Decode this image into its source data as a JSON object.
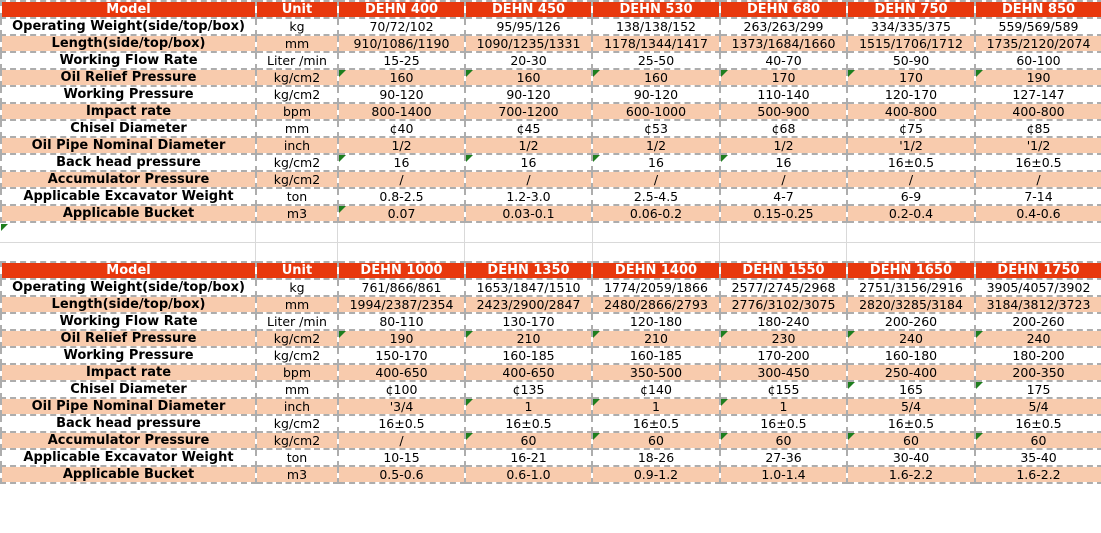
{
  "styles": {
    "header_bg": "#e8380d",
    "header_text": "#ffffff",
    "row_bg": "#ffffff",
    "row_alt_bg": "#f8cbad",
    "border_color": "#adadad",
    "gridline_color": "#d9d9d9",
    "indicator_color": "#1e7e1e",
    "text_color": "#000000"
  },
  "icons": {
    "error_indicator": "green-triangle-top-left"
  },
  "tables": [
    {
      "header": {
        "model_label": "Model",
        "unit_label": "Unit",
        "columns": [
          "DEHN 400",
          "DEHN 450",
          "DEHN 530",
          "DEHN 680",
          "DEHN 750",
          "DEHN 850"
        ]
      },
      "rows": [
        {
          "label": "Operating Weight(side/top/box)",
          "unit": "kg",
          "values": [
            "70/72/102",
            "95/95/126",
            "138/138/152",
            "263/263/299",
            "334/335/375",
            "559/569/589"
          ],
          "indicators": []
        },
        {
          "label": "Length(side/top/box)",
          "unit": "mm",
          "values": [
            "910/1086/1190",
            "1090/1235/1331",
            "1178/1344/1417",
            "1373/1684/1660",
            "1515/1706/1712",
            "1735/2120/2074"
          ],
          "indicators": []
        },
        {
          "label": "Working Flow Rate",
          "unit": "Liter /min",
          "values": [
            "15-25",
            "20-30",
            "25-50",
            "40-70",
            "50-90",
            "60-100"
          ],
          "indicators": []
        },
        {
          "label": "Oil Relief Pressure",
          "unit": "kg/cm2",
          "values": [
            "160",
            "160",
            "160",
            "170",
            "170",
            "190"
          ],
          "indicators": [
            0,
            1,
            2,
            3,
            4,
            5
          ]
        },
        {
          "label": "Working Pressure",
          "unit": "kg/cm2",
          "values": [
            "90-120",
            "90-120",
            "90-120",
            "110-140",
            "120-170",
            "127-147"
          ],
          "indicators": []
        },
        {
          "label": "Impact rate",
          "unit": "bpm",
          "values": [
            "800-1400",
            "700-1200",
            "600-1000",
            "500-900",
            "400-800",
            "400-800"
          ],
          "indicators": []
        },
        {
          "label": "Chisel Diameter",
          "unit": "mm",
          "values": [
            "¢40",
            "¢45",
            "¢53",
            "¢68",
            "¢75",
            "¢85"
          ],
          "indicators": []
        },
        {
          "label": "Oil Pipe Nominal Diameter",
          "unit": "inch",
          "values": [
            "1/2",
            "1/2",
            "1/2",
            "1/2",
            "'1/2",
            "'1/2"
          ],
          "indicators": []
        },
        {
          "label": "Back head pressure",
          "unit": "kg/cm2",
          "values": [
            "16",
            "16",
            "16",
            "16",
            "16±0.5",
            "16±0.5"
          ],
          "indicators": [
            0,
            1,
            2,
            3
          ]
        },
        {
          "label": "Accumulator Pressure",
          "unit": "kg/cm2",
          "values": [
            "/",
            "/",
            "/",
            "/",
            "/",
            "/"
          ],
          "indicators": []
        },
        {
          "label": "Applicable Excavator Weight",
          "unit": "ton",
          "values": [
            "0.8-2.5",
            "1.2-3.0",
            "2.5-4.5",
            "4-7",
            "6-9",
            "7-14"
          ],
          "indicators": []
        },
        {
          "label": "Applicable Bucket",
          "unit": "m3",
          "values": [
            "0.07",
            "0.03-0.1",
            "0.06-0.2",
            "0.15-0.25",
            "0.2-0.4",
            "0.4-0.6"
          ],
          "indicators": [
            0
          ]
        }
      ]
    },
    {
      "header": {
        "model_label": "Model",
        "unit_label": "Unit",
        "columns": [
          "DEHN 1000",
          "DEHN 1350",
          "DEHN 1400",
          "DEHN 1550",
          "DEHN 1650",
          "DEHN 1750"
        ]
      },
      "rows": [
        {
          "label": "Operating Weight(side/top/box)",
          "unit": "kg",
          "values": [
            "761/866/861",
            "1653/1847/1510",
            "1774/2059/1866",
            "2577/2745/2968",
            "2751/3156/2916",
            "3905/4057/3902"
          ],
          "indicators": []
        },
        {
          "label": "Length(side/top/box)",
          "unit": "mm",
          "values": [
            "1994/2387/2354",
            "2423/2900/2847",
            "2480/2866/2793",
            "2776/3102/3075",
            "2820/3285/3184",
            "3184/3812/3723"
          ],
          "indicators": []
        },
        {
          "label": "Working Flow Rate",
          "unit": "Liter /min",
          "values": [
            "80-110",
            "130-170",
            "120-180",
            "180-240",
            "200-260",
            "200-260"
          ],
          "indicators": []
        },
        {
          "label": "Oil Relief Pressure",
          "unit": "kg/cm2",
          "values": [
            "190",
            "210",
            "210",
            "230",
            "240",
            "240"
          ],
          "indicators": [
            0,
            1,
            2,
            3,
            4,
            5
          ]
        },
        {
          "label": "Working Pressure",
          "unit": "kg/cm2",
          "values": [
            "150-170",
            "160-185",
            "160-185",
            "170-200",
            "160-180",
            "180-200"
          ],
          "indicators": []
        },
        {
          "label": "Impact rate",
          "unit": "bpm",
          "values": [
            "400-650",
            "400-650",
            "350-500",
            "300-450",
            "250-400",
            "200-350"
          ],
          "indicators": []
        },
        {
          "label": "Chisel Diameter",
          "unit": "mm",
          "values": [
            "¢100",
            "¢135",
            "¢140",
            "¢155",
            "165",
            "175"
          ],
          "indicators": [
            4,
            5
          ]
        },
        {
          "label": "Oil Pipe Nominal Diameter",
          "unit": "inch",
          "values": [
            "'3/4",
            "1",
            "1",
            "1",
            "5/4",
            "5/4"
          ],
          "indicators": [
            1,
            2,
            3
          ]
        },
        {
          "label": "Back head pressure",
          "unit": "kg/cm2",
          "values": [
            "16±0.5",
            "16±0.5",
            "16±0.5",
            "16±0.5",
            "16±0.5",
            "16±0.5"
          ],
          "indicators": []
        },
        {
          "label": "Accumulator Pressure",
          "unit": "kg/cm2",
          "values": [
            "/",
            "60",
            "60",
            "60",
            "60",
            "60"
          ],
          "indicators": [
            1,
            2,
            3,
            4,
            5
          ]
        },
        {
          "label": "Applicable Excavator Weight",
          "unit": "ton",
          "values": [
            "10-15",
            "16-21",
            "18-26",
            "27-36",
            "30-40",
            "35-40"
          ],
          "indicators": []
        },
        {
          "label": "Applicable Bucket",
          "unit": "m3",
          "values": [
            "0.5-0.6",
            "0.6-1.0",
            "0.9-1.2",
            "1.0-1.4",
            "1.6-2.2",
            "1.6-2.2"
          ],
          "indicators": []
        }
      ]
    }
  ],
  "gap": {
    "has_error_indicator": true
  }
}
